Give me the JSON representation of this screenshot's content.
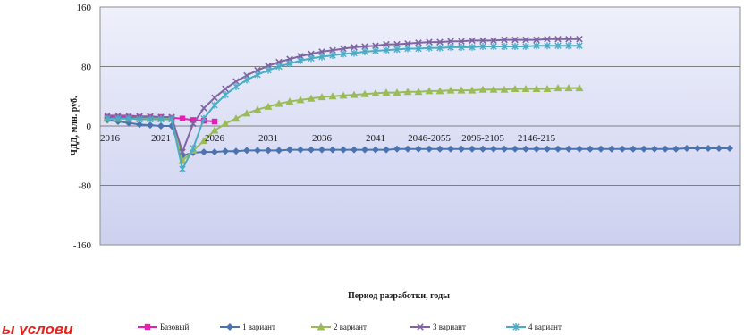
{
  "overlay_text": "ы услови",
  "colors": {
    "plot_bg_top": "#eef0fb",
    "plot_bg_bottom": "#cdd1ef",
    "gridline": "#7f7f7f",
    "axis": "#7f7f7f"
  },
  "chart_data": {
    "type": "line",
    "title": "",
    "xlabel": "Период разработки, годы",
    "ylabel": "ЧДД, млн. руб.",
    "ylim": [
      -160,
      160
    ],
    "yticks": [
      "160",
      "80",
      "0",
      "-80",
      "-160"
    ],
    "x_tick_labels": [
      "2016",
      "2021",
      "2026",
      "2031",
      "2036",
      "2041",
      "2046-2055",
      "2096-2105",
      "2146-215"
    ],
    "grid": "horizontal major gridlines",
    "legend_position": "bottom",
    "x_categories_count": 59,
    "series": [
      {
        "name": "Базовый",
        "color": "#e61eb4",
        "marker": "square",
        "values": [
          12,
          12,
          12,
          12,
          12,
          12,
          11,
          10,
          8,
          7,
          6
        ]
      },
      {
        "name": "1 вариант",
        "color": "#4a73b0",
        "marker": "diamond",
        "values": [
          8,
          6,
          4,
          2,
          1,
          0,
          0,
          -40,
          -36,
          -35,
          -35,
          -34,
          -34,
          -33,
          -33,
          -33,
          -33,
          -32,
          -32,
          -32,
          -32,
          -32,
          -32,
          -32,
          -32,
          -32,
          -32,
          -31,
          -31,
          -31,
          -31,
          -31,
          -31,
          -31,
          -31,
          -31,
          -31,
          -31,
          -31,
          -31,
          -31,
          -31,
          -31,
          -31,
          -31,
          -31,
          -31,
          -31,
          -31,
          -31,
          -31,
          -31,
          -31,
          -31,
          -30,
          -30,
          -30,
          -30,
          -30
        ]
      },
      {
        "name": "2 вариант",
        "color": "#9bbb59",
        "marker": "triangle",
        "values": [
          10,
          10,
          10,
          10,
          10,
          10,
          10,
          -47,
          -33,
          -20,
          -6,
          3,
          10,
          17,
          22,
          26,
          30,
          33,
          35,
          37,
          39,
          40,
          41,
          42,
          43,
          44,
          45,
          45,
          46,
          46,
          47,
          47,
          48,
          48,
          48,
          49,
          49,
          49,
          50,
          50,
          50,
          50,
          51,
          51,
          51
        ]
      },
      {
        "name": "3 вариант",
        "color": "#8064a2",
        "marker": "x",
        "values": [
          14,
          14,
          14,
          13,
          13,
          12,
          12,
          -35,
          3,
          24,
          38,
          50,
          60,
          68,
          75,
          81,
          86,
          90,
          94,
          97,
          100,
          102,
          104,
          106,
          107,
          108,
          110,
          110,
          111,
          112,
          113,
          113,
          114,
          114,
          115,
          115,
          115,
          116,
          116,
          116,
          116,
          117,
          117,
          117,
          117
        ]
      },
      {
        "name": "4 вариант",
        "color": "#4bacc6",
        "marker": "star",
        "values": [
          10,
          10,
          10,
          9,
          9,
          9,
          9,
          -58,
          -30,
          10,
          28,
          42,
          53,
          62,
          69,
          75,
          80,
          84,
          88,
          91,
          93,
          95,
          97,
          98,
          100,
          101,
          102,
          103,
          104,
          104,
          105,
          105,
          106,
          106,
          106,
          107,
          107,
          107,
          107,
          107,
          108,
          108,
          108,
          108,
          108
        ]
      }
    ]
  }
}
